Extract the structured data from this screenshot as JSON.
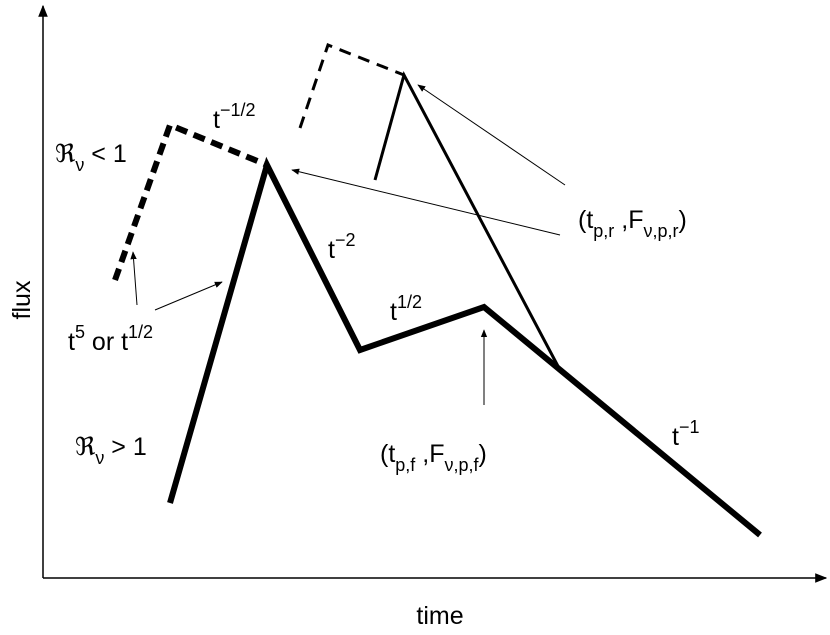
{
  "axes": {
    "x_label": "time",
    "y_label": "flux"
  },
  "labels": [
    [
      {
        "base": "ℜ"
      },
      {
        "sub": "ν"
      },
      {
        "base": " < 1"
      }
    ],
    [
      {
        "base": "t"
      },
      {
        "sup": "−1/2"
      }
    ],
    [
      {
        "base": "t"
      },
      {
        "sup": "−2"
      }
    ],
    [
      {
        "base": "t"
      },
      {
        "sup": "1/2"
      }
    ],
    [
      {
        "base": "t"
      },
      {
        "sup": "5"
      },
      {
        "base": " or t"
      },
      {
        "sup": "1/2"
      }
    ],
    [
      {
        "base": "(t"
      },
      {
        "sub": "p,r"
      },
      {
        "base": " ,F"
      },
      {
        "sub": "ν,p,r"
      },
      {
        "base": ")"
      }
    ],
    [
      {
        "base": "(t"
      },
      {
        "sub": "p,f"
      },
      {
        "base": " ,F"
      },
      {
        "sub": "ν,p,f"
      },
      {
        "base": ")"
      }
    ],
    [
      {
        "base": "ℜ"
      },
      {
        "sub": "ν"
      },
      {
        "base": " > 1"
      }
    ],
    [
      {
        "base": "t"
      },
      {
        "sup": "−1"
      }
    ]
  ]
}
